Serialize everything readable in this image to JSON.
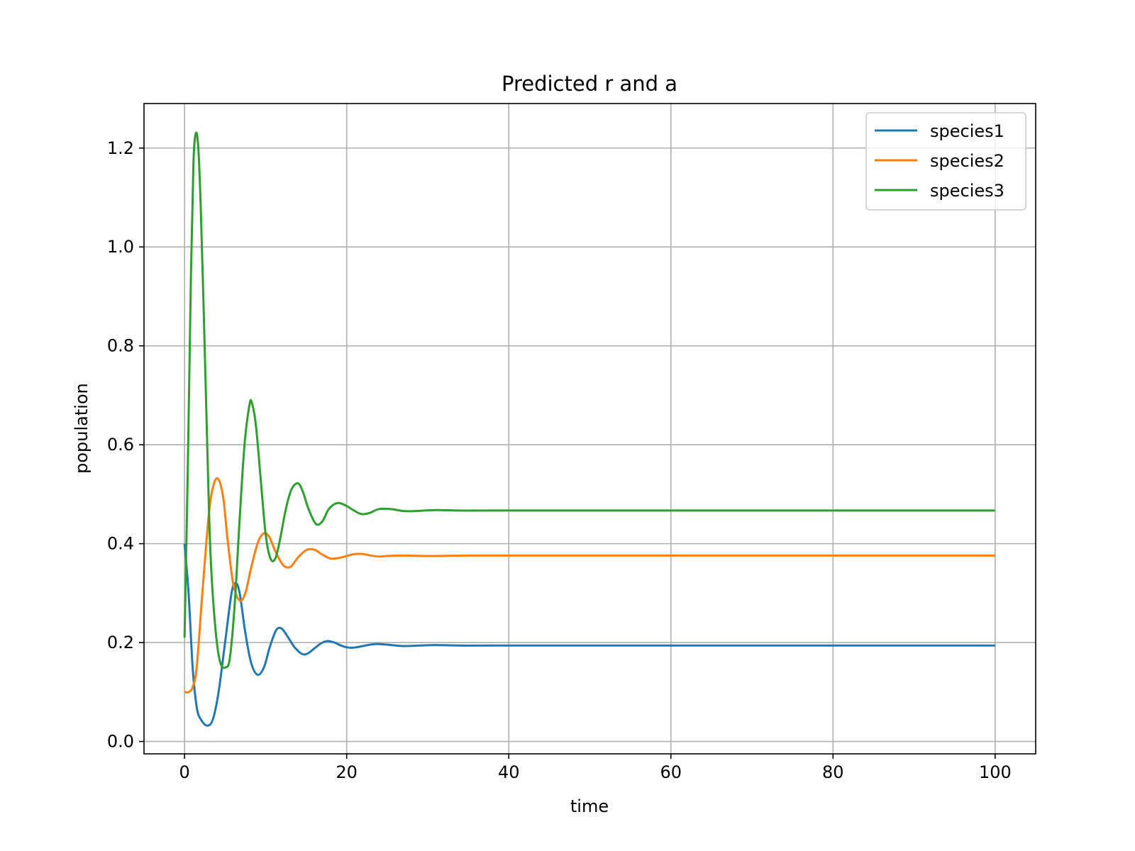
{
  "chart_data": {
    "type": "line",
    "title": "Predicted r and a",
    "xlabel": "time",
    "ylabel": "population",
    "xlim": [
      -5,
      105
    ],
    "ylim": [
      -0.025,
      1.29
    ],
    "xticks": [
      0,
      20,
      40,
      60,
      80,
      100
    ],
    "yticks": [
      0.0,
      0.2,
      0.4,
      0.6,
      0.8,
      1.0,
      1.2
    ],
    "xtick_labels": [
      "0",
      "20",
      "40",
      "60",
      "80",
      "100"
    ],
    "ytick_labels": [
      "0.0",
      "0.2",
      "0.4",
      "0.6",
      "0.8",
      "1.0",
      "1.2"
    ],
    "grid": true,
    "legend_position": "top-right",
    "series": [
      {
        "name": "species1",
        "color": "#1f77b4",
        "x": [
          0,
          0.5,
          1,
          1.5,
          2,
          2.8,
          3.5,
          4.2,
          5,
          5.8,
          6.3,
          6.8,
          7.5,
          8.2,
          9,
          9.8,
          10.5,
          11.3,
          12,
          12.8,
          13.6,
          14.5,
          15.2,
          16,
          16.8,
          17.6,
          18.5,
          19.3,
          20.2,
          21,
          22,
          23,
          24,
          25.5,
          27,
          29,
          31,
          34,
          38,
          45,
          60,
          80,
          100
        ],
        "y": [
          0.4,
          0.3,
          0.15,
          0.07,
          0.045,
          0.032,
          0.045,
          0.1,
          0.2,
          0.3,
          0.32,
          0.3,
          0.22,
          0.16,
          0.135,
          0.15,
          0.19,
          0.225,
          0.228,
          0.21,
          0.19,
          0.177,
          0.178,
          0.188,
          0.198,
          0.203,
          0.2,
          0.194,
          0.19,
          0.19,
          0.193,
          0.196,
          0.197,
          0.195,
          0.193,
          0.194,
          0.195,
          0.194,
          0.194,
          0.194,
          0.194,
          0.194,
          0.194
        ]
      },
      {
        "name": "species2",
        "color": "#ff7f0e",
        "x": [
          0,
          0.5,
          1,
          1.5,
          2.2,
          3,
          3.6,
          4.2,
          4.8,
          5.3,
          6,
          6.8,
          7.5,
          8.2,
          9,
          9.7,
          10.4,
          11.2,
          12,
          12.6,
          13.2,
          14,
          15,
          16,
          17,
          18,
          19,
          20,
          21,
          22,
          23,
          24,
          25,
          27,
          30,
          35,
          40,
          60,
          80,
          100
        ],
        "y": [
          0.1,
          0.1,
          0.11,
          0.15,
          0.3,
          0.46,
          0.52,
          0.53,
          0.49,
          0.41,
          0.32,
          0.285,
          0.3,
          0.35,
          0.4,
          0.42,
          0.415,
          0.385,
          0.36,
          0.352,
          0.355,
          0.372,
          0.387,
          0.388,
          0.378,
          0.37,
          0.371,
          0.375,
          0.379,
          0.379,
          0.376,
          0.374,
          0.375,
          0.376,
          0.375,
          0.376,
          0.376,
          0.376,
          0.376,
          0.376
        ]
      },
      {
        "name": "species3",
        "color": "#2ca02c",
        "x": [
          0,
          0.4,
          0.8,
          1.1,
          1.4,
          1.7,
          2,
          2.4,
          2.8,
          3.2,
          3.8,
          4.4,
          5.1,
          5.6,
          6.2,
          6.8,
          7.4,
          8,
          8.3,
          8.8,
          9.4,
          10,
          10.6,
          11.2,
          11.8,
          12.5,
          13.2,
          14,
          14.6,
          15.3,
          16.2,
          17,
          17.8,
          18.8,
          19.8,
          20.8,
          21.8,
          22.8,
          24,
          25.5,
          27,
          28.5,
          31,
          34,
          38,
          45,
          60,
          80,
          100
        ],
        "y": [
          0.21,
          0.55,
          0.95,
          1.17,
          1.23,
          1.2,
          1.08,
          0.85,
          0.6,
          0.38,
          0.23,
          0.16,
          0.15,
          0.17,
          0.28,
          0.45,
          0.6,
          0.68,
          0.685,
          0.64,
          0.53,
          0.42,
          0.37,
          0.37,
          0.41,
          0.47,
          0.51,
          0.522,
          0.505,
          0.47,
          0.44,
          0.445,
          0.47,
          0.482,
          0.478,
          0.468,
          0.46,
          0.462,
          0.47,
          0.47,
          0.466,
          0.466,
          0.468,
          0.467,
          0.467,
          0.467,
          0.467,
          0.467,
          0.467
        ]
      }
    ]
  }
}
